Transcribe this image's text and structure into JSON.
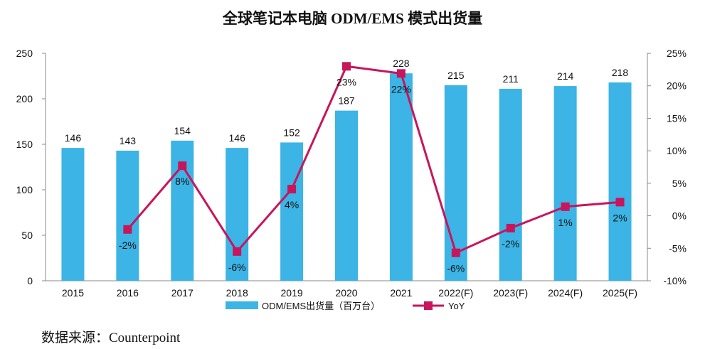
{
  "chart_data": {
    "type": "bar",
    "title": "全球笔记本电脑 ODM/EMS 模式出货量",
    "categories": [
      "2015",
      "2016",
      "2017",
      "2018",
      "2019",
      "2020",
      "2021",
      "2022(F)",
      "2023(F)",
      "2024(F)",
      "2025(F)"
    ],
    "series": [
      {
        "name": "ODM/EMS出货量（百万台）",
        "kind": "bar",
        "axis": "left",
        "color": "#3CB4E5",
        "values": [
          146,
          143,
          154,
          146,
          152,
          187,
          228,
          215,
          211,
          214,
          218
        ],
        "labels": [
          "146",
          "143",
          "154",
          "146",
          "152",
          "187",
          "228",
          "215",
          "211",
          "214",
          "218"
        ]
      },
      {
        "name": "YoY",
        "kind": "line",
        "axis": "right",
        "color": "#C8155B",
        "values": [
          null,
          -2.1,
          7.7,
          -5.5,
          4.1,
          23.0,
          21.9,
          -5.7,
          -1.9,
          1.4,
          2.1
        ],
        "labels": [
          "",
          "-2%",
          "8%",
          "-6%",
          "4%",
          "23%",
          "22%",
          "-6%",
          "-2%",
          "1%",
          "2%"
        ]
      }
    ],
    "ylim": [
      0,
      250
    ],
    "yticks": [
      "0",
      "50",
      "100",
      "150",
      "200",
      "250"
    ],
    "y2lim": [
      -10,
      25
    ],
    "y2ticks": [
      "-10%",
      "-5%",
      "0%",
      "5%",
      "10%",
      "15%",
      "20%",
      "25%"
    ],
    "legend_position": "bottom",
    "grid": false
  },
  "source": "数据来源：Counterpoint"
}
